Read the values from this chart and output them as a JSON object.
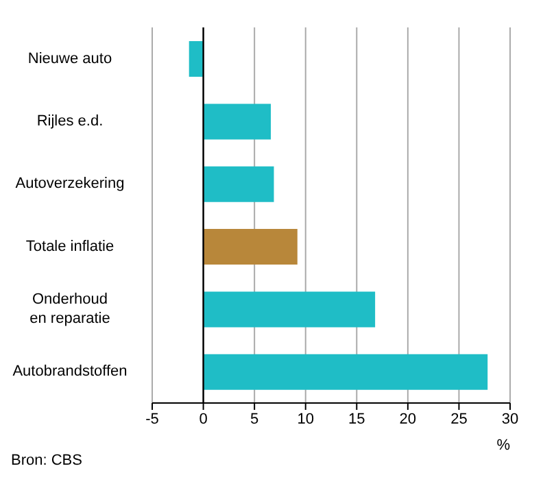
{
  "chart_data": {
    "type": "bar",
    "orientation": "horizontal",
    "categories": [
      "Nieuwe auto",
      "Rijles e.d.",
      "Autoverzekering",
      "Totale inflatie",
      "Onderhoud en reparatie",
      "Autobrandstoffen"
    ],
    "values": [
      -1.4,
      6.6,
      6.9,
      9.2,
      16.8,
      27.8
    ],
    "colors": [
      "#1fbdc6",
      "#1fbdc6",
      "#1fbdc6",
      "#b8873a",
      "#1fbdc6",
      "#1fbdc6"
    ],
    "xlim": [
      -5,
      30
    ],
    "xticks": [
      -5,
      0,
      5,
      10,
      15,
      20,
      25,
      30
    ],
    "xlabel": "%",
    "grid": "x",
    "annotations": [
      "Bron: CBS"
    ]
  }
}
